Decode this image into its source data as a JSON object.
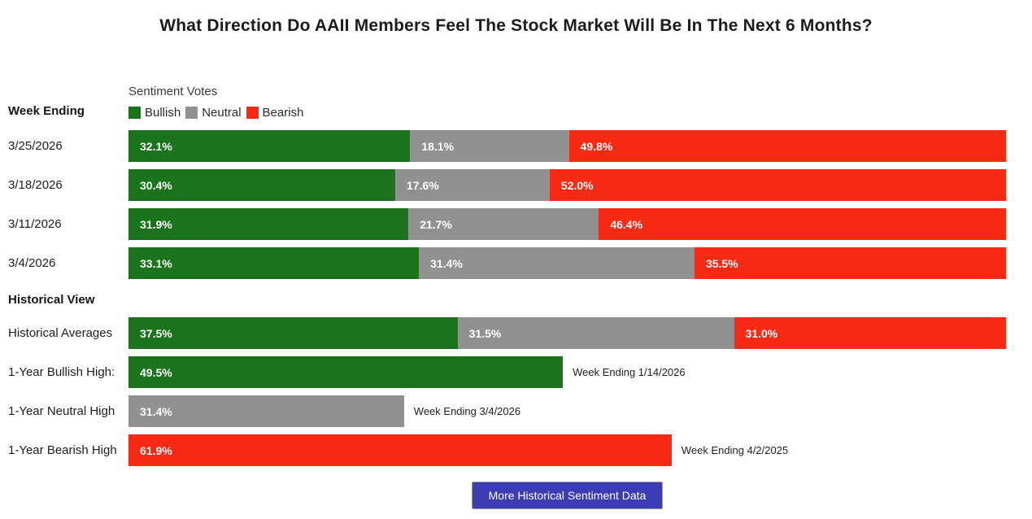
{
  "title": "What Direction Do AAII Members Feel The Stock Market Will Be In The Next 6 Months?",
  "week_ending_header": "Week Ending",
  "legend": {
    "title": "Sentiment Votes",
    "items": [
      {
        "name": "Bullish",
        "color": "#1b731d"
      },
      {
        "name": "Neutral",
        "color": "#919191"
      },
      {
        "name": "Bearish",
        "color": "#f72a14"
      }
    ]
  },
  "colors": {
    "bullish_green": "#1b731d",
    "neutral_gray": "#919191",
    "bearish_red": "#f72a14",
    "button_indigo": "#3c3cb4"
  },
  "weekly": {
    "rows": [
      {
        "date": "3/25/2026",
        "segments": [
          {
            "name": "bullish",
            "pct": 32.1,
            "label": "32.1%"
          },
          {
            "name": "neutral",
            "pct": 18.1,
            "label": "18.1%"
          },
          {
            "name": "bearish",
            "pct": 49.8,
            "label": "49.8%"
          }
        ]
      },
      {
        "date": "3/18/2026",
        "segments": [
          {
            "name": "bullish",
            "pct": 30.4,
            "label": "30.4%"
          },
          {
            "name": "neutral",
            "pct": 17.6,
            "label": "17.6%"
          },
          {
            "name": "bearish",
            "pct": 52.0,
            "label": "52.0%"
          }
        ]
      },
      {
        "date": "3/11/2026",
        "segments": [
          {
            "name": "bullish",
            "pct": 31.9,
            "label": "31.9%"
          },
          {
            "name": "neutral",
            "pct": 21.7,
            "label": "21.7%"
          },
          {
            "name": "bearish",
            "pct": 46.4,
            "label": "46.4%"
          }
        ]
      },
      {
        "date": "3/4/2026",
        "segments": [
          {
            "name": "bullish",
            "pct": 33.1,
            "label": "33.1%"
          },
          {
            "name": "neutral",
            "pct": 31.4,
            "label": "31.4%"
          },
          {
            "name": "bearish",
            "pct": 35.5,
            "label": "35.5%"
          }
        ]
      }
    ]
  },
  "historical": {
    "header": "Historical View",
    "averages_row": {
      "label": "Historical Averages",
      "segments": [
        {
          "name": "bullish",
          "pct": 37.5,
          "label": "37.5%"
        },
        {
          "name": "neutral",
          "pct": 31.5,
          "label": "31.5%"
        },
        {
          "name": "bearish",
          "pct": 31.0,
          "label": "31.0%"
        }
      ]
    },
    "high_rows": [
      {
        "label": "1-Year Bullish High:",
        "sentiment": "bullish",
        "pct": 49.5,
        "value_label": "49.5%",
        "annotation": "Week Ending 1/14/2026"
      },
      {
        "label": "1-Year Neutral High",
        "sentiment": "neutral",
        "pct": 31.4,
        "value_label": "31.4%",
        "annotation": "Week Ending 3/4/2026"
      },
      {
        "label": "1-Year Bearish High",
        "sentiment": "bearish",
        "pct": 61.9,
        "value_label": "61.9%",
        "annotation": "Week Ending 4/2/2025"
      }
    ]
  },
  "button": {
    "label": "More Historical Sentiment Data"
  },
  "chart_data": {
    "type": "bar",
    "subtype": "horizontal-stacked",
    "title": "What Direction Do AAII Members Feel The Stock Market Will Be In The Next 6 Months?",
    "legend": {
      "title": "Sentiment Votes",
      "entries": [
        "Bullish",
        "Neutral",
        "Bearish"
      ],
      "position": "top-left"
    },
    "categories": [
      "3/25/2026",
      "3/18/2026",
      "3/11/2026",
      "3/4/2026"
    ],
    "series": [
      {
        "name": "Bullish",
        "color": "#1b731d",
        "values": [
          32.1,
          30.4,
          31.9,
          33.1
        ]
      },
      {
        "name": "Neutral",
        "color": "#919191",
        "values": [
          18.1,
          17.6,
          21.7,
          31.4
        ]
      },
      {
        "name": "Bearish",
        "color": "#f72a14",
        "values": [
          49.8,
          52.0,
          46.4,
          35.5
        ]
      }
    ],
    "historical_view": {
      "averages": {
        "Bullish": 37.5,
        "Neutral": 31.5,
        "Bearish": 31.0
      },
      "one_year_bullish_high": {
        "value": 49.5,
        "week_ending": "1/14/2026"
      },
      "one_year_neutral_high": {
        "value": 31.4,
        "week_ending": "3/4/2026"
      },
      "one_year_bearish_high": {
        "value": 61.9,
        "week_ending": "4/2/2025"
      }
    },
    "xlim": [
      0,
      100
    ],
    "unit": "%",
    "grid": false,
    "data_labels": "inside-start"
  }
}
